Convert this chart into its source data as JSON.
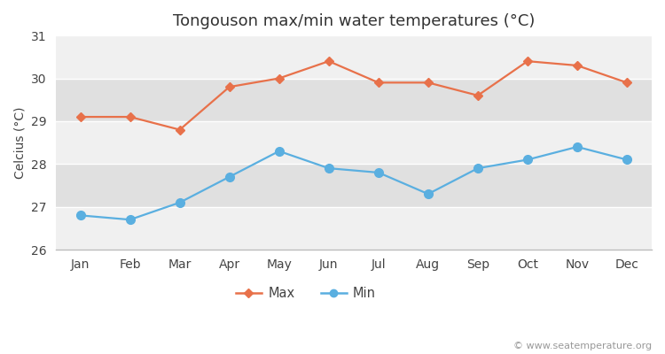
{
  "title": "Tongouson max/min water temperatures (°C)",
  "ylabel": "Celcius (°C)",
  "months": [
    "Jan",
    "Feb",
    "Mar",
    "Apr",
    "May",
    "Jun",
    "Jul",
    "Aug",
    "Sep",
    "Oct",
    "Nov",
    "Dec"
  ],
  "max_temps": [
    29.1,
    29.1,
    28.8,
    29.8,
    30.0,
    30.4,
    29.9,
    29.9,
    29.6,
    30.4,
    30.3,
    29.9
  ],
  "min_temps": [
    26.8,
    26.7,
    27.1,
    27.7,
    28.3,
    27.9,
    27.8,
    27.3,
    27.9,
    28.1,
    28.4,
    28.1
  ],
  "max_color": "#e8714a",
  "min_color": "#5aafe0",
  "ylim": [
    26,
    31
  ],
  "yticks": [
    26,
    27,
    28,
    29,
    30,
    31
  ],
  "background_color": "#ffffff",
  "plot_bg_color": "#e8e8e8",
  "band_light": "#f0f0f0",
  "band_dark": "#e0e0e0",
  "grid_color": "#ffffff",
  "title_fontsize": 13,
  "axis_fontsize": 10,
  "tick_fontsize": 10,
  "watermark": "© www.seatemperature.org",
  "figsize": [
    7.5,
    4.0
  ],
  "dpi": 100
}
